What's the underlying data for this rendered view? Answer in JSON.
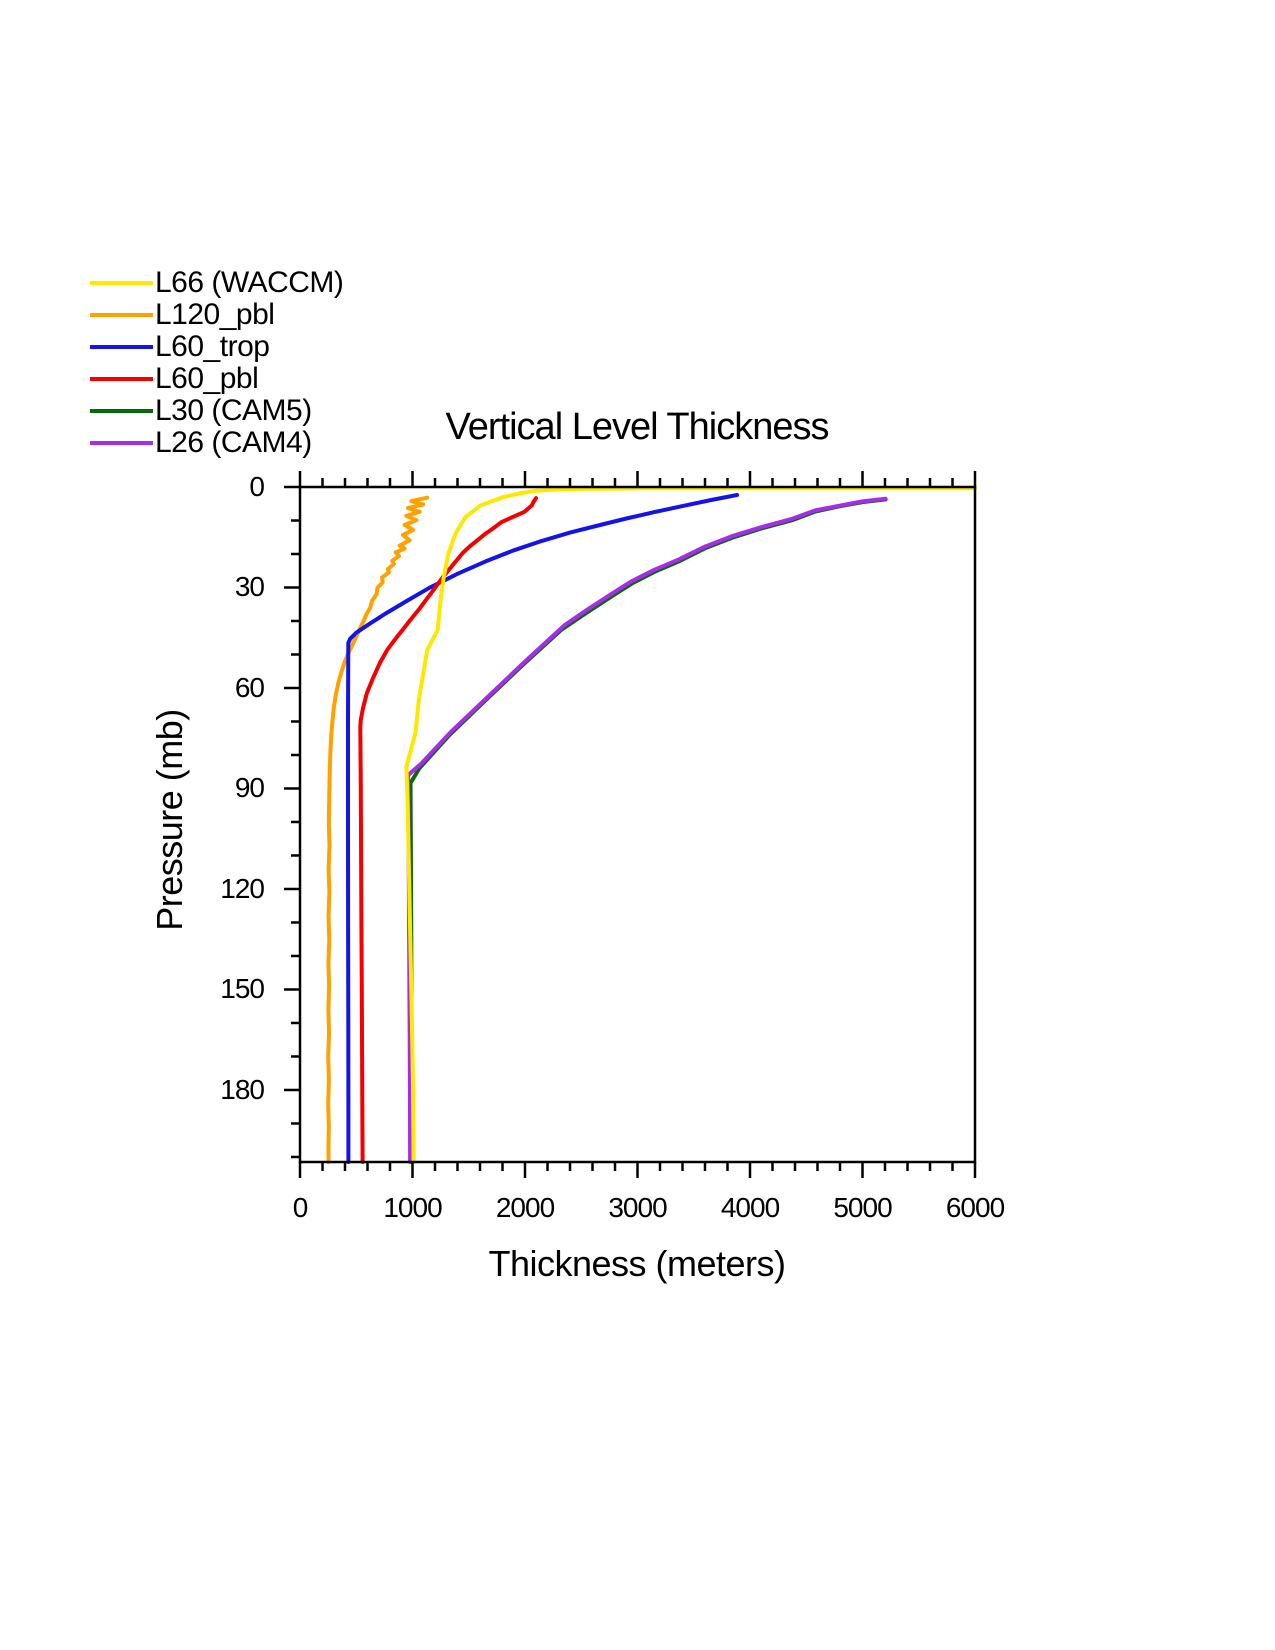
{
  "page": {
    "background": "#FFFFFF"
  },
  "legend": {
    "items": [
      {
        "label": "L66 (WACCM)",
        "color": "#FFE800"
      },
      {
        "label": "L120_pbl",
        "color": "#FFA100"
      },
      {
        "label": "L60_trop",
        "color": "#1414E8"
      },
      {
        "label": "L60_pbl",
        "color": "#F50000"
      },
      {
        "label": "L30 (CAM5)",
        "color": "#0A680A"
      },
      {
        "label": "L26 (CAM4)",
        "color": "#A52CE8"
      }
    ]
  },
  "chart_data": {
    "type": "line",
    "title": "Vertical Level Thickness",
    "xlabel": "Thickness (meters)",
    "ylabel": "Pressure (mb)",
    "grid": false,
    "legend_position": "top-left",
    "x_axis": {
      "min": 0,
      "max": 6000,
      "major_tick_step": 1000,
      "minor_tick_step": 200,
      "tick_labels": [
        "0",
        "1000",
        "2000",
        "3000",
        "4000",
        "5000",
        "6000"
      ]
    },
    "y_axis": {
      "min": 0,
      "max": 201.5,
      "inverted": true,
      "major_tick_step": 30,
      "major_tick_max": 180,
      "minor_tick_step": 10,
      "minor_tick_max": 200,
      "tick_labels": [
        "0",
        "30",
        "60",
        "90",
        "120",
        "150",
        "180"
      ]
    },
    "draw_order": [
      1,
      2,
      3,
      4,
      5,
      0
    ],
    "series": [
      {
        "name": "L66 (WACCM)",
        "color": "#FFE800",
        "points": [
          [
            6000,
            0.4
          ],
          [
            3000,
            0.4
          ],
          [
            2600,
            0.5
          ],
          [
            2300,
            0.7
          ],
          [
            2100,
            1.1
          ],
          [
            1950,
            1.9
          ],
          [
            1810,
            3.0
          ],
          [
            1610,
            5.4
          ],
          [
            1470,
            9.0
          ],
          [
            1385,
            13.7
          ],
          [
            1320,
            19.7
          ],
          [
            1277,
            26.9
          ],
          [
            1250,
            33.7
          ],
          [
            1223,
            42.7
          ],
          [
            1131,
            48.7
          ],
          [
            1056,
            63.6
          ],
          [
            1027,
            73.4
          ],
          [
            946,
            83.5
          ],
          [
            957,
            95
          ],
          [
            973,
            123
          ],
          [
            991,
            153
          ],
          [
            1005,
            180
          ],
          [
            1010,
            201.5
          ]
        ]
      },
      {
        "name": "L120_pbl",
        "color": "#FFA100",
        "points": [
          [
            1130,
            3.2
          ],
          [
            990,
            4.2
          ],
          [
            1095,
            5.2
          ],
          [
            960,
            6.3
          ],
          [
            1065,
            7.4
          ],
          [
            945,
            8.6
          ],
          [
            1035,
            9.9
          ],
          [
            930,
            11.3
          ],
          [
            1005,
            12.8
          ],
          [
            915,
            14.3
          ],
          [
            975,
            15.9
          ],
          [
            885,
            17.5
          ],
          [
            930,
            18.4
          ],
          [
            850,
            19.5
          ],
          [
            880,
            20.6
          ],
          [
            820,
            22
          ],
          [
            835,
            23
          ],
          [
            780,
            24.5
          ],
          [
            790,
            25.5
          ],
          [
            730,
            27
          ],
          [
            735,
            28.5
          ],
          [
            690,
            30
          ],
          [
            680,
            32
          ],
          [
            640,
            34
          ],
          [
            625,
            36
          ],
          [
            590,
            38
          ],
          [
            565,
            40
          ],
          [
            530,
            42.5
          ],
          [
            495,
            45
          ],
          [
            460,
            47.5
          ],
          [
            425,
            50
          ],
          [
            395,
            52.5
          ],
          [
            365,
            55.5
          ],
          [
            340,
            58.5
          ],
          [
            318,
            62
          ],
          [
            300,
            66
          ],
          [
            288,
            70
          ],
          [
            278,
            74
          ],
          [
            270,
            79
          ],
          [
            264,
            85
          ],
          [
            260,
            92
          ],
          [
            256,
            100
          ],
          [
            262,
            107
          ],
          [
            254,
            114
          ],
          [
            261,
            121
          ],
          [
            253,
            128
          ],
          [
            260,
            135
          ],
          [
            252,
            142
          ],
          [
            259,
            149
          ],
          [
            252,
            156
          ],
          [
            258,
            163
          ],
          [
            251,
            170
          ],
          [
            257,
            177
          ],
          [
            251,
            184
          ],
          [
            256,
            191
          ],
          [
            252,
            198
          ],
          [
            254,
            201.5
          ]
        ]
      },
      {
        "name": "L60_trop",
        "color": "#1414E8",
        "points": [
          [
            3884,
            2.4
          ],
          [
            3650,
            3.9
          ],
          [
            3400,
            5.7
          ],
          [
            3150,
            7.5
          ],
          [
            2900,
            9.4
          ],
          [
            2650,
            11.5
          ],
          [
            2400,
            13.6
          ],
          [
            2150,
            16.1
          ],
          [
            1900,
            18.9
          ],
          [
            1650,
            22.2
          ],
          [
            1400,
            25.9
          ],
          [
            1150,
            30.1
          ],
          [
            950,
            34
          ],
          [
            760,
            37.8
          ],
          [
            625,
            40.7
          ],
          [
            500,
            43.5
          ],
          [
            446,
            45.3
          ],
          [
            429,
            46.6
          ],
          [
            427,
            70
          ],
          [
            427,
            100
          ],
          [
            428,
            130
          ],
          [
            429,
            160
          ],
          [
            430,
            185
          ],
          [
            430,
            201.5
          ]
        ]
      },
      {
        "name": "L60_pbl",
        "color": "#F50000",
        "points": [
          [
            2098,
            3.3
          ],
          [
            2075,
            4.5
          ],
          [
            2060,
            5.5
          ],
          [
            1991,
            7.5
          ],
          [
            1890,
            9.0
          ],
          [
            1790,
            10.5
          ],
          [
            1723,
            12.2
          ],
          [
            1650,
            13.9
          ],
          [
            1580,
            15.8
          ],
          [
            1510,
            17.7
          ],
          [
            1446,
            19.7
          ],
          [
            1357,
            23.3
          ],
          [
            1270,
            26.9
          ],
          [
            1188,
            30.7
          ],
          [
            1120,
            33.7
          ],
          [
            1054,
            36.7
          ],
          [
            980,
            39.7
          ],
          [
            911,
            42.7
          ],
          [
            840,
            45.7
          ],
          [
            774,
            48.7
          ],
          [
            710,
            52.5
          ],
          [
            650,
            57
          ],
          [
            595,
            61.5
          ],
          [
            560,
            66
          ],
          [
            540,
            69.5
          ],
          [
            536,
            71.6
          ],
          [
            540,
            90
          ],
          [
            543,
            110
          ],
          [
            546,
            130
          ],
          [
            549,
            150
          ],
          [
            552,
            170
          ],
          [
            555,
            190
          ],
          [
            556,
            201.5
          ]
        ]
      },
      {
        "name": "L30 (CAM5)",
        "color": "#0A680A",
        "points": [
          [
            5205,
            3.7
          ],
          [
            5000,
            4.5
          ],
          [
            4790,
            5.8
          ],
          [
            4580,
            7.3
          ],
          [
            4375,
            9.9
          ],
          [
            4100,
            12.4
          ],
          [
            3839,
            15.2
          ],
          [
            3600,
            18.3
          ],
          [
            3363,
            22.3
          ],
          [
            3152,
            25.3
          ],
          [
            2950,
            28.8
          ],
          [
            2768,
            32.7
          ],
          [
            2545,
            37.6
          ],
          [
            2321,
            42.7
          ],
          [
            1985,
            53
          ],
          [
            1655,
            63.5
          ],
          [
            1330,
            74
          ],
          [
            1060,
            84
          ],
          [
            982,
            88.4
          ],
          [
            986,
            110
          ],
          [
            989,
            135
          ],
          [
            991,
            160
          ],
          [
            993,
            185
          ],
          [
            994,
            201.5
          ]
        ]
      },
      {
        "name": "L26 (CAM4)",
        "color": "#A52CE8",
        "points": [
          [
            5205,
            3.5
          ],
          [
            5000,
            4.3
          ],
          [
            4790,
            5.6
          ],
          [
            4580,
            7.0
          ],
          [
            4375,
            9.5
          ],
          [
            4100,
            12.0
          ],
          [
            3839,
            14.7
          ],
          [
            3600,
            17.8
          ],
          [
            3363,
            21.7
          ],
          [
            3152,
            24.7
          ],
          [
            2950,
            28.1
          ],
          [
            2768,
            31.9
          ],
          [
            2545,
            36.8
          ],
          [
            2350,
            41.3
          ],
          [
            2010,
            51.8
          ],
          [
            1680,
            62.3
          ],
          [
            1350,
            72.8
          ],
          [
            1080,
            82.5
          ],
          [
            961,
            86.0
          ],
          [
            966,
            110
          ],
          [
            970,
            135
          ],
          [
            974,
            160
          ],
          [
            978,
            185
          ],
          [
            979,
            201.5
          ]
        ]
      }
    ]
  }
}
